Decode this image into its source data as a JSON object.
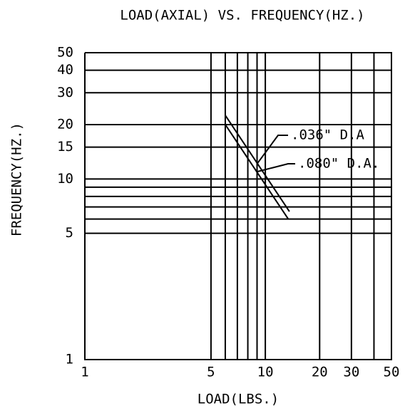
{
  "chart_data": {
    "type": "line",
    "title": "LOAD(AXIAL) VS. FREQUENCY(HZ.)",
    "x_label": "LOAD(LBS.)",
    "y_label": "FREQUENCY(HZ.)",
    "xscale": "log",
    "yscale": "log",
    "xlim": [
      1,
      50
    ],
    "ylim": [
      1,
      50
    ],
    "xticks": [
      1,
      5,
      10,
      20,
      30,
      50
    ],
    "yticks": [
      1,
      5,
      10,
      15,
      20,
      30,
      40,
      50
    ],
    "xgrid": [
      5,
      6,
      7,
      8,
      9,
      10,
      20,
      30,
      40,
      50
    ],
    "ygrid": [
      5,
      6,
      7,
      8,
      9,
      10,
      15,
      20,
      30,
      40,
      50
    ],
    "grid": true,
    "series": [
      {
        "name": ".036\" D.A",
        "color": "#000000",
        "x": [
          6.0,
          13.6
        ],
        "values": [
          22.5,
          6.6
        ]
      },
      {
        "name": ".080\" D.A.",
        "color": "#000000",
        "x": [
          6.0,
          13.4
        ],
        "values": [
          20,
          6
        ]
      }
    ]
  }
}
